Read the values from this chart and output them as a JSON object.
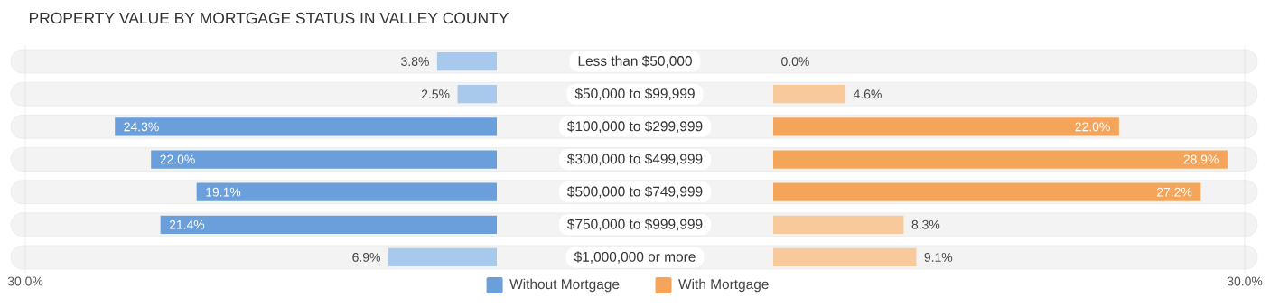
{
  "chart_data": [
    {
      "type": "bar",
      "orientation": "horizontal",
      "title": "PROPERTY VALUE BY MORTGAGE STATUS IN VALLEY COUNTY",
      "categories": [
        "Less than $50,000",
        "$50,000 to $99,999",
        "$100,000 to $299,999",
        "$300,000 to $499,999",
        "$500,000 to $749,999",
        "$750,000 to $999,999",
        "$1,000,000 or more"
      ],
      "series": [
        {
          "name": "Without Mortgage",
          "color": "#6a9fdb",
          "colors": [
            "#a8c8ec",
            "#a8c8ec",
            "#6a9fdb",
            "#6a9fdb",
            "#6a9fdb",
            "#6a9fdb",
            "#a8c8ec"
          ],
          "values": [
            3.8,
            2.5,
            24.3,
            22.0,
            19.1,
            21.4,
            6.9
          ],
          "value_labels": [
            "3.8%",
            "2.5%",
            "24.3%",
            "22.0%",
            "19.1%",
            "21.4%",
            "6.9%"
          ]
        }
      ],
      "xlim": [
        30,
        0
      ],
      "xticks": [
        {
          "value": 30,
          "label": "30.0%"
        }
      ],
      "legend": "bottom"
    },
    {
      "type": "bar",
      "orientation": "horizontal",
      "categories": [
        null,
        null,
        null,
        null,
        null,
        null,
        null
      ],
      "tick_labels": "x",
      "series": [
        {
          "name": "With Mortgage",
          "color": "#f5a55a",
          "colors": [
            "#f8c99b",
            "#f8c99b",
            "#f5a55a",
            "#f5a55a",
            "#f5a55a",
            "#f8c99b",
            "#f8c99b"
          ],
          "values": [
            0.0,
            4.6,
            22.0,
            28.9,
            27.2,
            8.3,
            9.1
          ],
          "value_labels": [
            "0.0%",
            "4.6%",
            "22.0%",
            "28.9%",
            "27.2%",
            "8.3%",
            "9.1%"
          ]
        }
      ],
      "xlim": [
        0,
        30
      ],
      "xticks": [
        {
          "value": 30,
          "label": "30.0%"
        }
      ],
      "legend": "bottom"
    }
  ]
}
